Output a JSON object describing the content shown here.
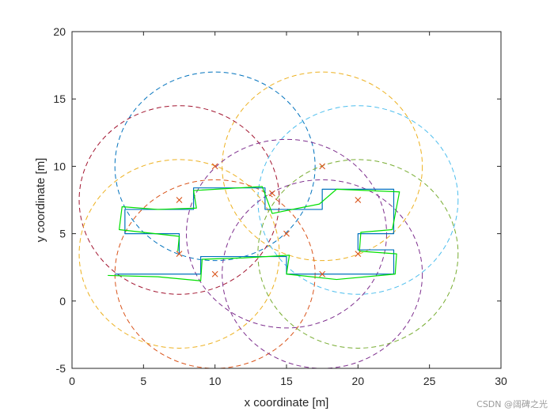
{
  "chart_data": {
    "type": "line",
    "title": "",
    "xlabel": "x coordinate [m]",
    "ylabel": "y coordinate [m]",
    "xlim": [
      0,
      30
    ],
    "ylim": [
      -5,
      20
    ],
    "xticks": [
      0,
      5,
      10,
      15,
      20,
      25,
      30
    ],
    "yticks": [
      -5,
      0,
      5,
      10,
      15,
      20
    ],
    "grid": false,
    "legend": "none",
    "anchors": {
      "color": "#d95319",
      "points": [
        [
          7.5,
          7.5
        ],
        [
          10,
          10
        ],
        [
          7.5,
          3.5
        ],
        [
          10,
          2
        ],
        [
          14,
          8
        ],
        [
          15,
          5
        ],
        [
          17.5,
          10
        ],
        [
          20,
          7.5
        ],
        [
          17.5,
          2
        ],
        [
          20,
          3.5
        ]
      ]
    },
    "circles": [
      {
        "cx": 10,
        "cy": 10,
        "r": 7,
        "color": "#0072bd"
      },
      {
        "cx": 17.5,
        "cy": 10,
        "r": 7,
        "color": "#edb120"
      },
      {
        "cx": 7.5,
        "cy": 7.5,
        "r": 7,
        "color": "#a2142f"
      },
      {
        "cx": 20,
        "cy": 7.5,
        "r": 7,
        "color": "#4dbeee"
      },
      {
        "cx": 7.5,
        "cy": 3.5,
        "r": 7,
        "color": "#edb120"
      },
      {
        "cx": 15,
        "cy": 5,
        "r": 7,
        "color": "#7e2f8e"
      },
      {
        "cx": 10,
        "cy": 2,
        "r": 7,
        "color": "#d95319"
      },
      {
        "cx": 20,
        "cy": 3.5,
        "r": 7,
        "color": "#77ac30"
      },
      {
        "cx": 17.5,
        "cy": 2,
        "r": 7,
        "color": "#7e2f8e"
      }
    ],
    "series": [
      {
        "color": "#0072bd",
        "path": [
          [
            3,
            2
          ],
          [
            9,
            2
          ],
          [
            9,
            3.3
          ],
          [
            15,
            3.3
          ],
          [
            15,
            2
          ],
          [
            22.5,
            2
          ],
          [
            22.5,
            3.8
          ],
          [
            20,
            3.8
          ],
          [
            20,
            5
          ],
          [
            22.5,
            5
          ],
          [
            22.5,
            8.3
          ],
          [
            17.5,
            8.3
          ],
          [
            17.5,
            6.8
          ],
          [
            13.5,
            6.8
          ],
          [
            13.5,
            8.4
          ],
          [
            8.5,
            8.4
          ],
          [
            8.5,
            6.8
          ],
          [
            3.7,
            6.8
          ],
          [
            3.7,
            5
          ],
          [
            7.5,
            5
          ],
          [
            7.5,
            3.5
          ]
        ]
      },
      {
        "color": "#00e000",
        "path": [
          [
            2.5,
            1.9
          ],
          [
            6,
            1.8
          ],
          [
            9,
            1.5
          ],
          [
            9.1,
            3.1
          ],
          [
            12,
            3.2
          ],
          [
            15.2,
            3.4
          ],
          [
            15,
            2
          ],
          [
            18.5,
            1.6
          ],
          [
            22.6,
            2
          ],
          [
            22.7,
            3.5
          ],
          [
            20.1,
            3.7
          ],
          [
            20.2,
            5.1
          ],
          [
            22.4,
            5.3
          ],
          [
            22.9,
            8.1
          ],
          [
            18.5,
            8.3
          ],
          [
            17.3,
            7.2
          ],
          [
            14,
            6.5
          ],
          [
            13.3,
            8.5
          ],
          [
            8.5,
            8.2
          ],
          [
            8.7,
            6.9
          ],
          [
            6,
            6.8
          ],
          [
            3.5,
            7
          ],
          [
            3.3,
            5.3
          ],
          [
            7.5,
            4.8
          ],
          [
            7.4,
            3.7
          ]
        ]
      }
    ]
  },
  "watermark": "CSDN @阔碑之光"
}
